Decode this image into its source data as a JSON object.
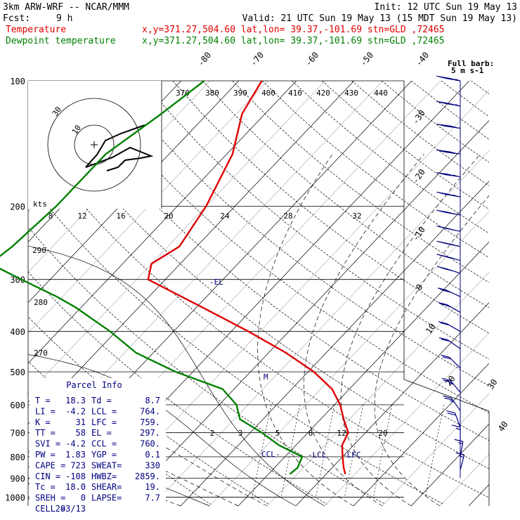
{
  "header": {
    "model": "3km ARW-WRF -- NCAR/MMM",
    "init": "Init: 12 UTC Sun 19 May 13",
    "fcst_label": "Fcst:",
    "fcst_value": "9 h",
    "valid": "Valid: 21 UTC Sun 19 May 13 (15 MDT Sun 19 May 13)",
    "temp_label": "Temperature",
    "temp_loc": "x,y=371.27,504.60   lat,lon= 39.37,-101.69  stn=GLD ,72465",
    "dew_label": "Dewpoint temperature",
    "dew_loc": "x,y=371.27,504.60   lat,lon= 39.37,-101.69  stn=GLD ,72465",
    "barb_note_1": "Full barb:",
    "barb_note_2": "5 m s-1"
  },
  "colors": {
    "temperature": "#e00000",
    "dewpoint": "#008000",
    "wind": "#000080",
    "gray_isotherm": "#c8c8c8"
  },
  "parcel_info": {
    "title": "Parcel Info",
    "rows": [
      [
        "T  =",
        "18.3",
        "Td  =",
        "8.7"
      ],
      [
        "LI =",
        "-4.2",
        "LCL =",
        "764."
      ],
      [
        "K  =",
        "31",
        "LFC =",
        "759."
      ],
      [
        "TT =",
        "58",
        "EL  =",
        "297."
      ],
      [
        "SVI =",
        "-4.2",
        "CCL =",
        "760."
      ],
      [
        "PW =",
        "1.83",
        "YGP =",
        "0.1"
      ],
      [
        "CAPE =",
        "723",
        "SWEAT=",
        "330"
      ],
      [
        "CIN =",
        "-108",
        "HWBZ=",
        "2859."
      ],
      [
        "Tc =",
        "18.0",
        "SHEAR=",
        "19."
      ],
      [
        "SREH =",
        "0",
        "LAPSE=",
        "7.7"
      ],
      [
        "CELL =",
        "283/13",
        "",
        ""
      ]
    ]
  },
  "hodograph": {
    "units": "kts",
    "ring_labels": [
      "10",
      "30"
    ],
    "speed_ticks": [
      "8",
      "12",
      "16",
      "20",
      "24",
      "28",
      "32"
    ]
  },
  "annotations": {
    "el": "-EL",
    "ccl": "CCL-",
    "lcl": "-LCL",
    "lfc": "-LFC",
    "m_marker": "M"
  },
  "chart_data": {
    "type": "line",
    "title": "",
    "xlabel": "",
    "ylabel": "",
    "y_scale": "log (pressure, hPa)",
    "pressure_ticks": [
      100,
      200,
      300,
      400,
      500,
      600,
      700,
      800,
      900,
      1000
    ],
    "temperature_ticks": [
      "-80",
      "-70",
      "-60",
      "-50",
      "-40",
      "-30",
      "-20",
      "-10",
      "0",
      "10",
      "20",
      "30",
      "40"
    ],
    "theta_labels": [
      "370",
      "380",
      "390",
      "400",
      "410",
      "420",
      "430",
      "440"
    ],
    "theta_left_labels": [
      "290",
      "280",
      "270"
    ],
    "mixing_ratio_labels": [
      "2",
      "3",
      "5",
      "8",
      "12",
      "20"
    ],
    "series": [
      {
        "name": "Temperature",
        "pressure": [
          100,
          120,
          150,
          200,
          250,
          275,
          300,
          350,
          400,
          450,
          500,
          550,
          600,
          650,
          700,
          750,
          800,
          850,
          880
        ],
        "values": [
          -61,
          -59,
          -54,
          -50,
          -48,
          -50,
          -48,
          -34,
          -22,
          -12,
          -4,
          2,
          6,
          9,
          12,
          13,
          15,
          17,
          18.3
        ]
      },
      {
        "name": "Dewpoint temperature",
        "pressure": [
          100,
          120,
          150,
          200,
          250,
          275,
          300,
          330,
          350,
          400,
          450,
          500,
          550,
          600,
          650,
          700,
          750,
          800,
          850,
          880
        ],
        "values": [
          -71,
          -73,
          -76,
          -76,
          -77,
          -78,
          -70,
          -61,
          -56,
          -46,
          -38,
          -28,
          -17,
          -12,
          -9,
          -3,
          2,
          8,
          9,
          8.7
        ]
      }
    ],
    "wind_barbs": [
      {
        "p": 100,
        "spd": 65,
        "dir": 260
      },
      {
        "p": 115,
        "spd": 65,
        "dir": 260
      },
      {
        "p": 130,
        "spd": 60,
        "dir": 262
      },
      {
        "p": 150,
        "spd": 60,
        "dir": 262
      },
      {
        "p": 170,
        "spd": 55,
        "dir": 262
      },
      {
        "p": 190,
        "spd": 55,
        "dir": 260
      },
      {
        "p": 210,
        "spd": 50,
        "dir": 260
      },
      {
        "p": 230,
        "spd": 50,
        "dir": 258
      },
      {
        "p": 250,
        "spd": 45,
        "dir": 258
      },
      {
        "p": 270,
        "spd": 45,
        "dir": 255
      },
      {
        "p": 290,
        "spd": 40,
        "dir": 252
      },
      {
        "p": 330,
        "spd": 30,
        "dir": 245
      },
      {
        "p": 360,
        "spd": 25,
        "dir": 240
      },
      {
        "p": 400,
        "spd": 20,
        "dir": 240
      },
      {
        "p": 440,
        "spd": 20,
        "dir": 235
      },
      {
        "p": 490,
        "spd": 20,
        "dir": 225
      },
      {
        "p": 560,
        "spd": 25,
        "dir": 220
      },
      {
        "p": 620,
        "spd": 25,
        "dir": 215
      },
      {
        "p": 680,
        "spd": 20,
        "dir": 200
      },
      {
        "p": 740,
        "spd": 15,
        "dir": 180
      },
      {
        "p": 800,
        "spd": 15,
        "dir": 170
      },
      {
        "p": 860,
        "spd": 15,
        "dir": 165
      }
    ]
  }
}
